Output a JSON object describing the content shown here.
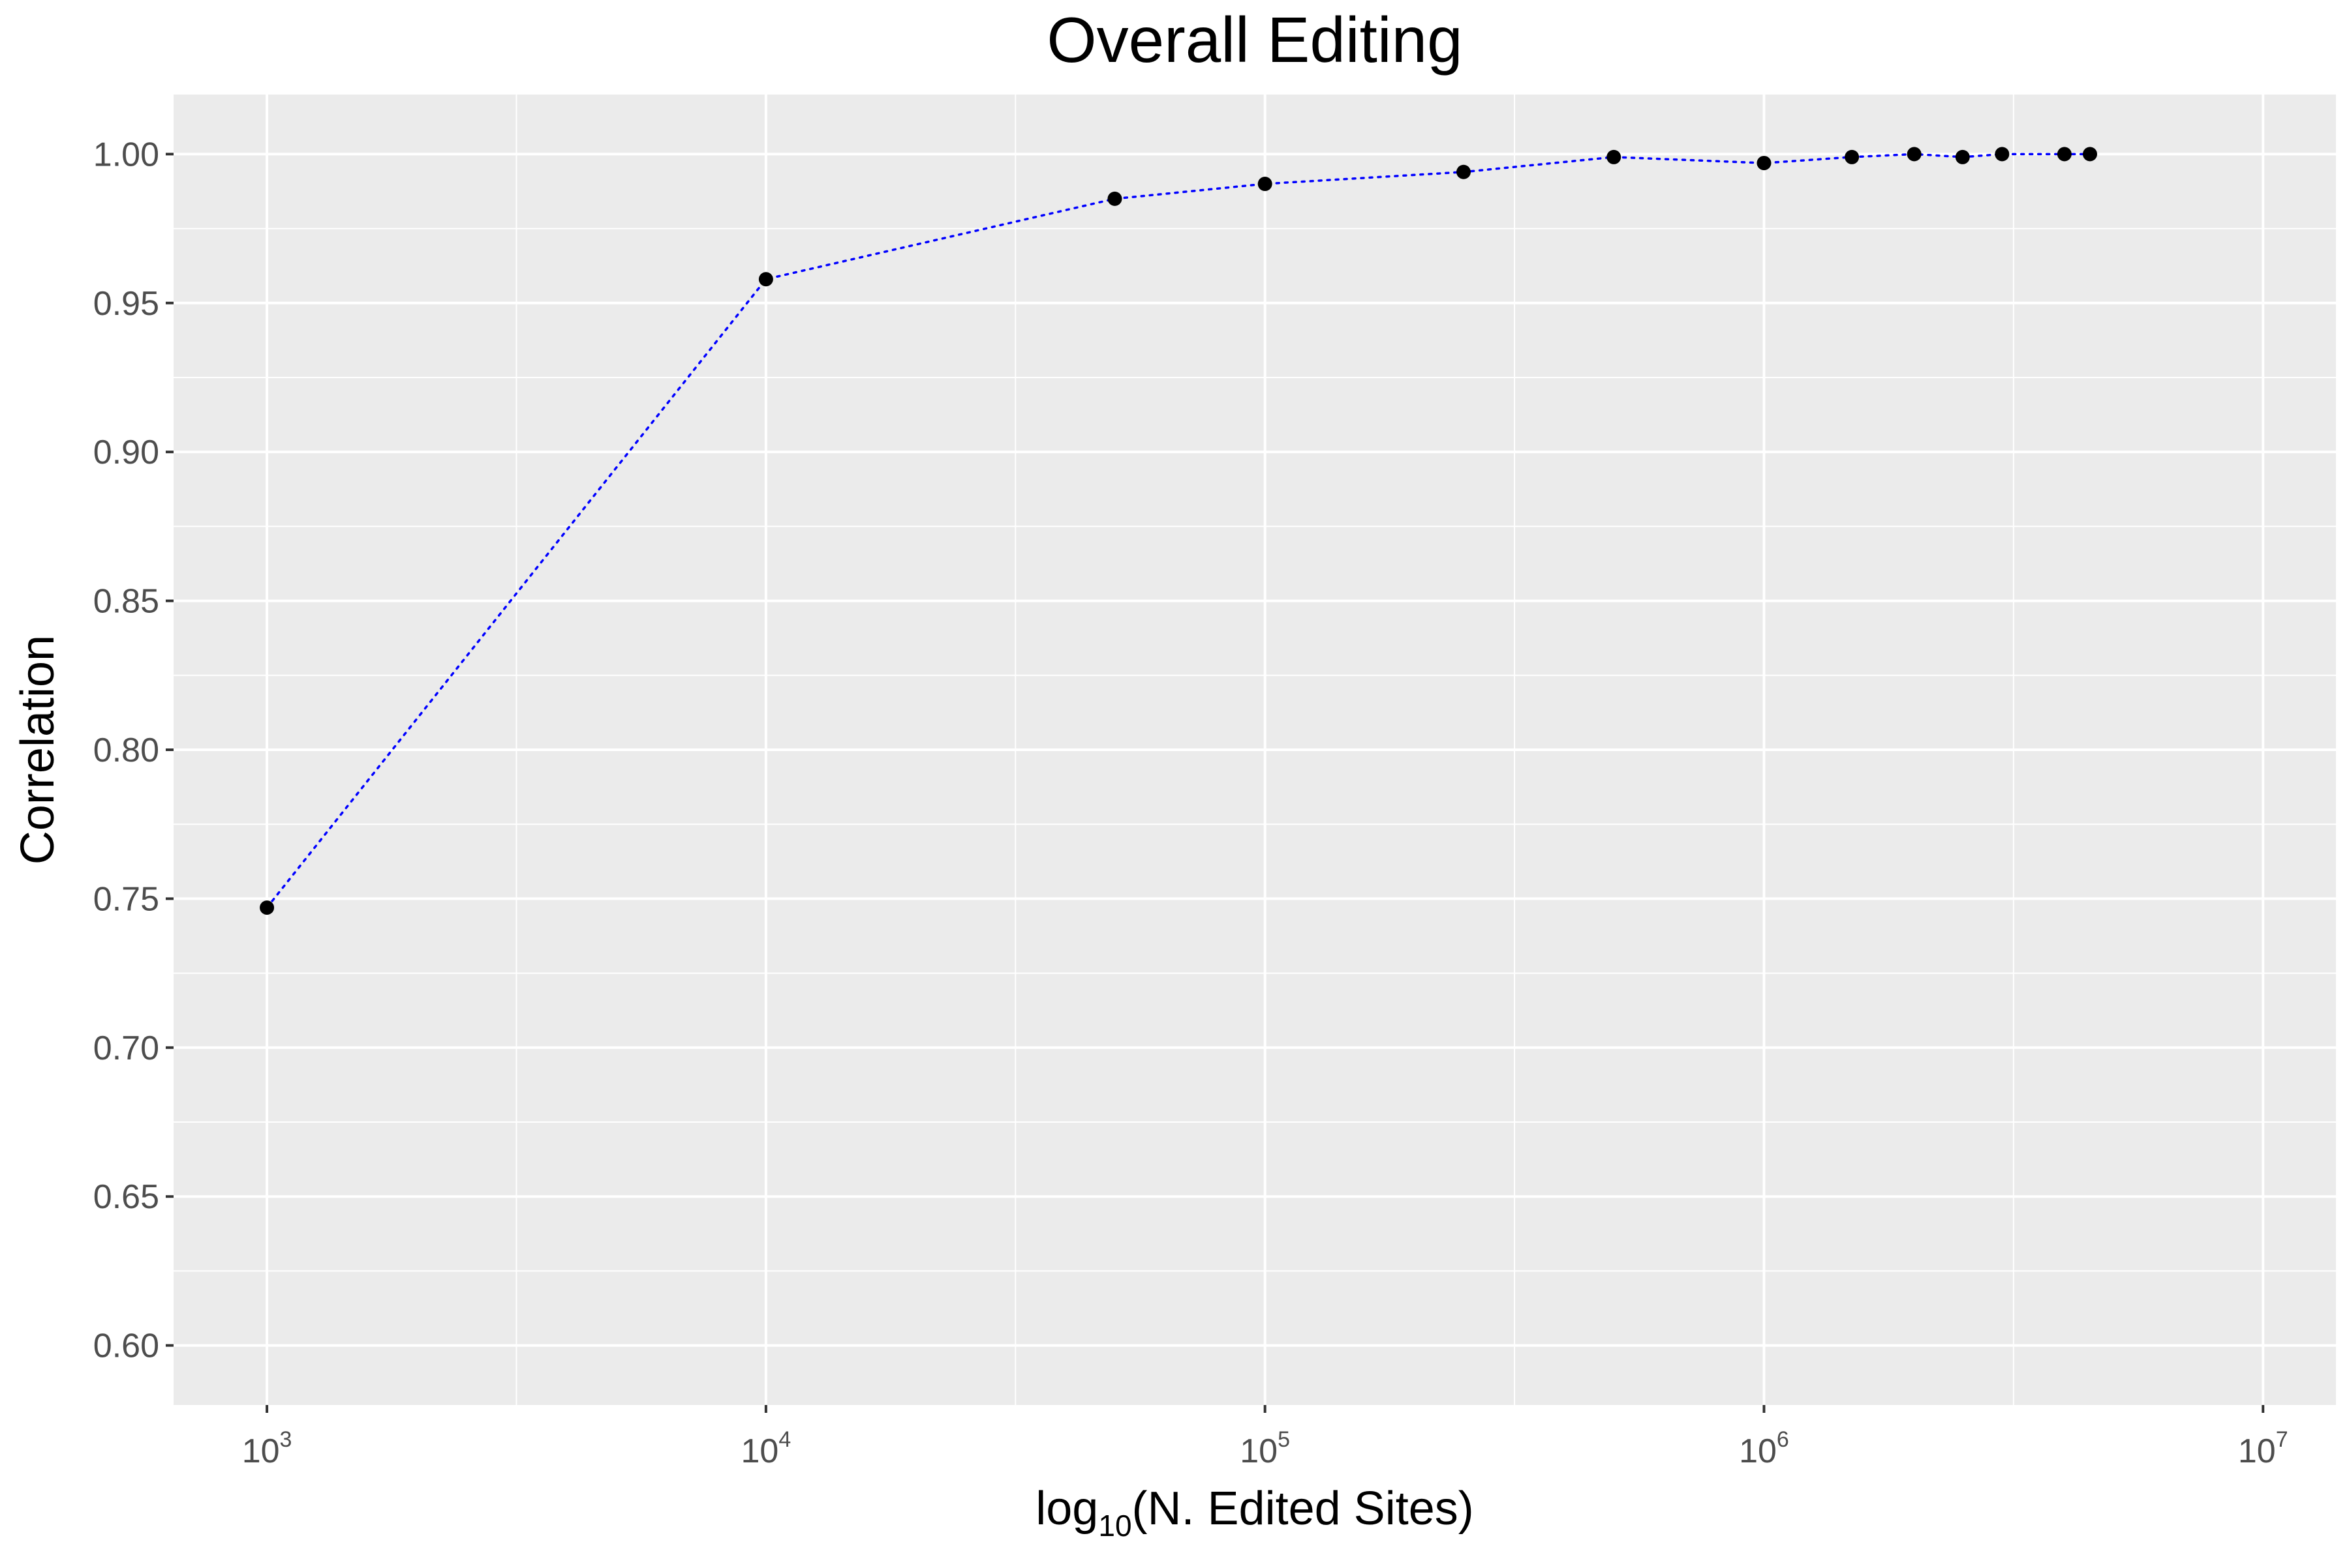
{
  "chart_data": {
    "type": "line",
    "title": "Overall Editing",
    "xlabel": {
      "prefix": "log",
      "subscript": "10",
      "text": "(N. Edited Sites)"
    },
    "ylabel": "Correlation",
    "x_scale": "log10",
    "xlim": [
      650,
      14000000
    ],
    "ylim": [
      0.58,
      1.02
    ],
    "x_ticks": [
      {
        "value": 1000,
        "base": "10",
        "exponent": "3"
      },
      {
        "value": 10000,
        "base": "10",
        "exponent": "4"
      },
      {
        "value": 100000,
        "base": "10",
        "exponent": "5"
      },
      {
        "value": 1000000,
        "base": "10",
        "exponent": "6"
      },
      {
        "value": 10000000,
        "base": "10",
        "exponent": "7"
      }
    ],
    "y_ticks": [
      {
        "value": 0.6,
        "label": "0.60"
      },
      {
        "value": 0.65,
        "label": "0.65"
      },
      {
        "value": 0.7,
        "label": "0.70"
      },
      {
        "value": 0.75,
        "label": "0.75"
      },
      {
        "value": 0.8,
        "label": "0.80"
      },
      {
        "value": 0.85,
        "label": "0.85"
      },
      {
        "value": 0.9,
        "label": "0.90"
      },
      {
        "value": 0.95,
        "label": "0.95"
      },
      {
        "value": 1.0,
        "label": "1.00"
      }
    ],
    "grid": true,
    "legend": "none",
    "colors": {
      "panel_background": "#ebebeb",
      "grid_line": "#ffffff",
      "line": "#0000ff",
      "point": "#000000",
      "text": "#000000",
      "tick_text": "#4d4d4d",
      "tick_mark": "#333333"
    },
    "line_style": "dotted",
    "series": [
      {
        "x": [
          1000,
          10000,
          50000,
          100000,
          250000,
          500000,
          1000000,
          1500000,
          2000000,
          2500000,
          3000000,
          4000000,
          4500000
        ],
        "y": [
          0.747,
          0.958,
          0.985,
          0.99,
          0.994,
          0.999,
          0.997,
          0.999,
          1.0,
          0.999,
          1.0,
          1.0,
          1.0
        ]
      }
    ]
  }
}
